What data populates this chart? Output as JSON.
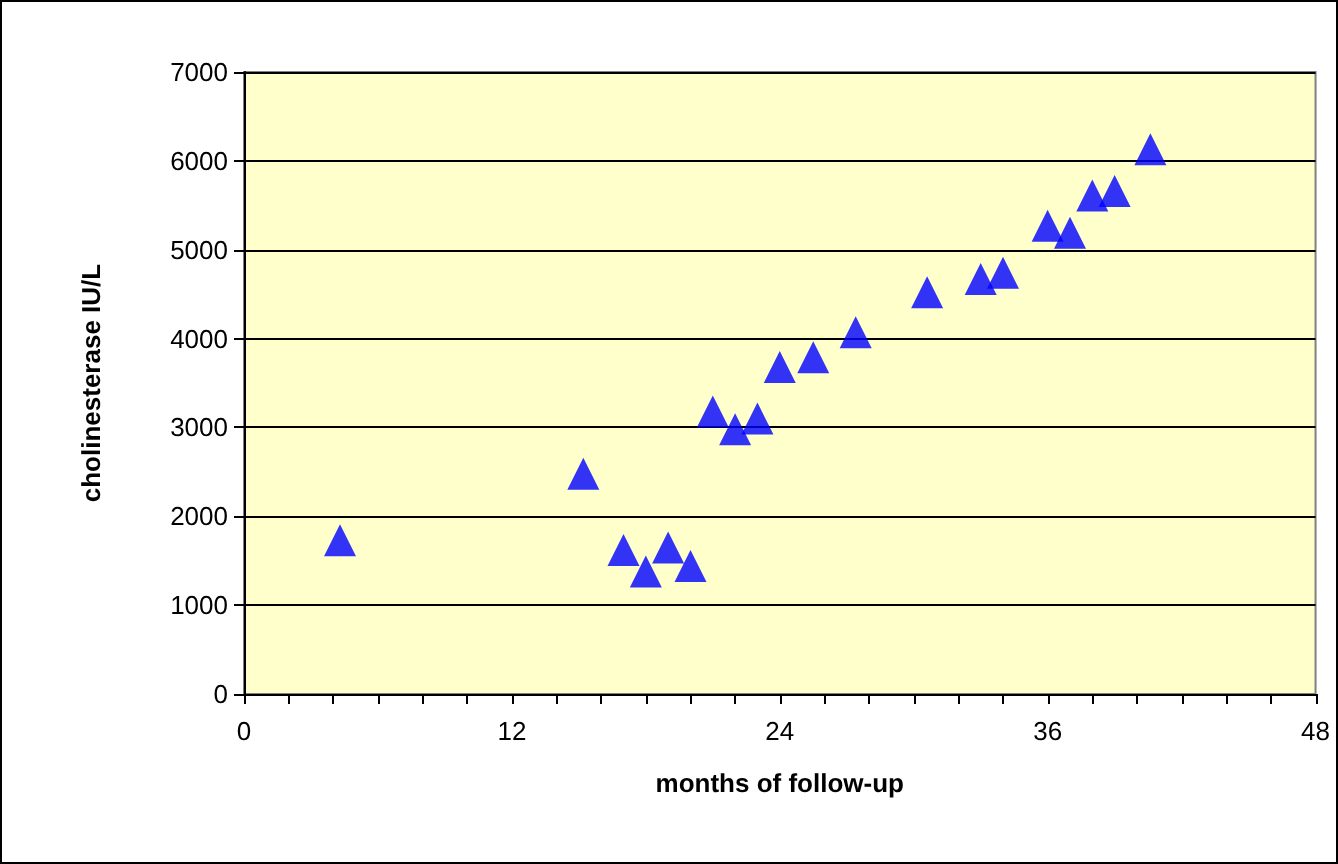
{
  "chart_data": {
    "type": "scatter",
    "xlabel": "months of follow-up",
    "ylabel": "cholinesterase IU/L",
    "x": [
      4.3,
      15.2,
      17,
      18,
      19,
      20,
      21,
      22,
      23,
      24,
      25.5,
      27.4,
      30.6,
      33,
      34,
      36,
      37,
      38,
      39,
      40.6
    ],
    "values": [
      1730,
      2480,
      1620,
      1380,
      1650,
      1440,
      3180,
      2980,
      3100,
      3680,
      3790,
      4070,
      4520,
      4670,
      4740,
      5270,
      5190,
      5610,
      5660,
      6130
    ],
    "color": "#0000ff",
    "marker": "triangle",
    "xlim": [
      0,
      48
    ],
    "xticks": [
      0,
      {
        "value": 2,
        "label": null
      },
      {
        "value": 4,
        "label": null
      },
      {
        "value": 6,
        "label": null
      },
      {
        "value": 8,
        "label": null
      },
      {
        "value": 10,
        "label": null
      },
      12,
      {
        "value": 14,
        "label": null
      },
      {
        "value": 16,
        "label": null
      },
      {
        "value": 18,
        "label": null
      },
      {
        "value": 20,
        "label": null
      },
      {
        "value": 22,
        "label": null
      },
      24,
      {
        "value": 26,
        "label": null
      },
      {
        "value": 28,
        "label": null
      },
      {
        "value": 30,
        "label": null
      },
      {
        "value": 32,
        "label": null
      },
      {
        "value": 34,
        "label": null
      },
      36,
      {
        "value": 38,
        "label": null
      },
      {
        "value": 40,
        "label": null
      },
      {
        "value": 42,
        "label": null
      },
      {
        "value": 44,
        "label": null
      },
      {
        "value": 46,
        "label": null
      },
      48
    ],
    "ylim": [
      0,
      7000
    ],
    "yticks": [
      0,
      1000,
      2000,
      3000,
      4000,
      5000,
      6000,
      7000
    ],
    "grid": "y"
  }
}
